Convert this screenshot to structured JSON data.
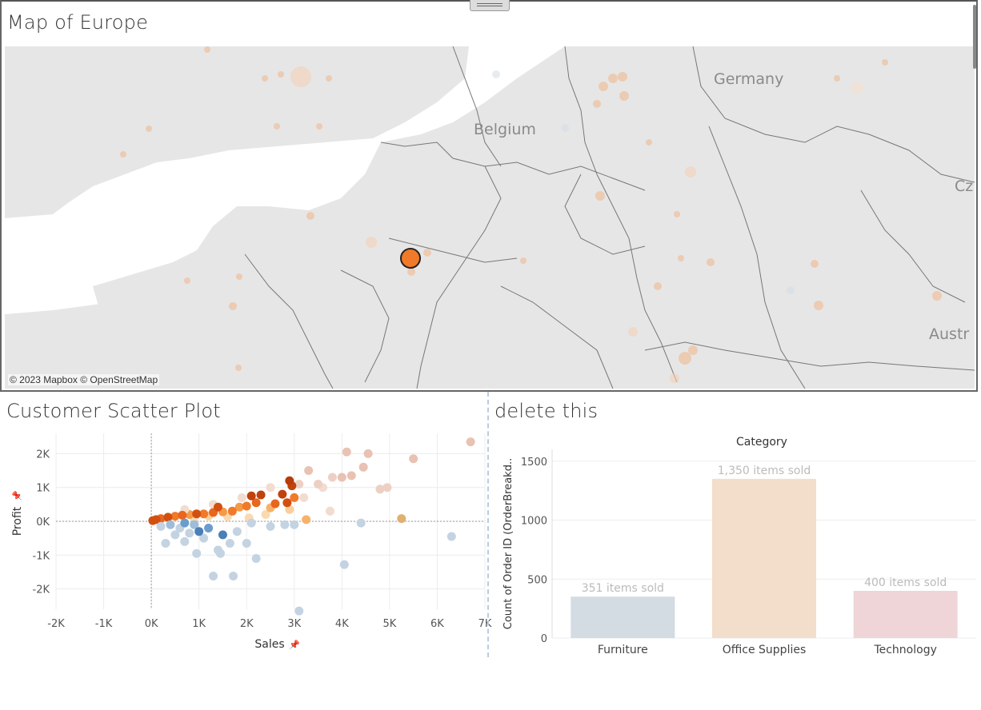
{
  "map": {
    "title": "Map of Europe",
    "attribution": "© 2023 Mapbox © OpenStreetMap",
    "labels": [
      "Germany",
      "Belgium",
      "Cz",
      "Austr"
    ],
    "highlight_color": "#f07a2a"
  },
  "scatter": {
    "title": "Customer Scatter Plot",
    "xlabel": "Sales",
    "ylabel": "Profit",
    "x_ticks": [
      "-2K",
      "-1K",
      "0K",
      "1K",
      "2K",
      "3K",
      "4K",
      "5K",
      "6K",
      "7K"
    ],
    "y_ticks": [
      "2K",
      "1K",
      "0K",
      "-1K",
      "-2K"
    ]
  },
  "bar": {
    "title": "delete this",
    "header": "Category",
    "ylabel": "Count of Order ID (OrderBreakd..",
    "y_ticks": [
      "1500",
      "1000",
      "500",
      "0"
    ]
  },
  "chart_data": [
    {
      "type": "scatter",
      "title": "Customer Scatter Plot",
      "xlabel": "Sales",
      "ylabel": "Profit",
      "xlim": [
        -2000,
        7000
      ],
      "ylim": [
        -2600,
        2600
      ],
      "grid": true,
      "points": [
        {
          "x": 30,
          "y": 20,
          "c": "#d2500f"
        },
        {
          "x": 100,
          "y": 50,
          "c": "#d2500f"
        },
        {
          "x": 200,
          "y": 80,
          "c": "#e8661d"
        },
        {
          "x": 350,
          "y": 120,
          "c": "#d2500f"
        },
        {
          "x": 500,
          "y": 150,
          "c": "#f07a2a"
        },
        {
          "x": 650,
          "y": 180,
          "c": "#e8661d"
        },
        {
          "x": 800,
          "y": 200,
          "c": "#f59a45"
        },
        {
          "x": 950,
          "y": 220,
          "c": "#d2500f"
        },
        {
          "x": 1100,
          "y": 220,
          "c": "#f07a2a"
        },
        {
          "x": 1300,
          "y": 260,
          "c": "#e8661d"
        },
        {
          "x": 1500,
          "y": 280,
          "c": "#f59a45"
        },
        {
          "x": 1700,
          "y": 300,
          "c": "#f07a2a"
        },
        {
          "x": 1400,
          "y": 420,
          "c": "#d2500f"
        },
        {
          "x": 1850,
          "y": 420,
          "c": "#f59a45"
        },
        {
          "x": 2000,
          "y": 450,
          "c": "#f07a2a"
        },
        {
          "x": 2100,
          "y": 750,
          "c": "#c0420c"
        },
        {
          "x": 2300,
          "y": 780,
          "c": "#c0420c"
        },
        {
          "x": 2200,
          "y": 550,
          "c": "#e8661d"
        },
        {
          "x": 2500,
          "y": 400,
          "c": "#f6b26b"
        },
        {
          "x": 2600,
          "y": 520,
          "c": "#e8661d"
        },
        {
          "x": 2750,
          "y": 800,
          "c": "#c0420c"
        },
        {
          "x": 2900,
          "y": 1200,
          "c": "#b83c0a"
        },
        {
          "x": 2950,
          "y": 1050,
          "c": "#c0420c"
        },
        {
          "x": 3000,
          "y": 700,
          "c": "#f07a2a"
        },
        {
          "x": 2850,
          "y": 550,
          "c": "#d2500f"
        },
        {
          "x": 3250,
          "y": 50,
          "c": "#f6b26b"
        },
        {
          "x": 5250,
          "y": 80,
          "c": "#e0b070"
        },
        {
          "x": 2050,
          "y": 100,
          "c": "#fbd9b0"
        },
        {
          "x": 2400,
          "y": 200,
          "c": "#fbd9b0"
        },
        {
          "x": 2900,
          "y": 350,
          "c": "#f9cf9c"
        },
        {
          "x": 1600,
          "y": 140,
          "c": "#fbd9b0"
        },
        {
          "x": 1200,
          "y": 160,
          "c": "#f9cf9c"
        },
        {
          "x": 900,
          "y": 120,
          "c": "#fbd9b0"
        },
        {
          "x": 3300,
          "y": 1500,
          "c": "#e8c2b3"
        },
        {
          "x": 3100,
          "y": 1100,
          "c": "#edd0c4"
        },
        {
          "x": 3500,
          "y": 1100,
          "c": "#edd0c4"
        },
        {
          "x": 3800,
          "y": 1300,
          "c": "#edd0c4"
        },
        {
          "x": 4000,
          "y": 1300,
          "c": "#e8c2b3"
        },
        {
          "x": 4200,
          "y": 1350,
          "c": "#e8c2b3"
        },
        {
          "x": 4100,
          "y": 2050,
          "c": "#e8c2b3"
        },
        {
          "x": 4550,
          "y": 2000,
          "c": "#e8c2b3"
        },
        {
          "x": 4450,
          "y": 1600,
          "c": "#e8c2b3"
        },
        {
          "x": 4800,
          "y": 950,
          "c": "#edd0c4"
        },
        {
          "x": 4950,
          "y": 1000,
          "c": "#edd0c4"
        },
        {
          "x": 5500,
          "y": 1850,
          "c": "#e8c2b3"
        },
        {
          "x": 6700,
          "y": 2350,
          "c": "#e8c2b3"
        },
        {
          "x": 3750,
          "y": 300,
          "c": "#f2dccf"
        },
        {
          "x": 3200,
          "y": 700,
          "c": "#f2dccf"
        },
        {
          "x": 3600,
          "y": 1000,
          "c": "#f2dccf"
        },
        {
          "x": 2500,
          "y": 1000,
          "c": "#f2dccf"
        },
        {
          "x": 1900,
          "y": 700,
          "c": "#f2dccf"
        },
        {
          "x": 1300,
          "y": 500,
          "c": "#f2dccf"
        },
        {
          "x": 700,
          "y": 350,
          "c": "#f2dccf"
        },
        {
          "x": 1000,
          "y": -300,
          "c": "#4a7fb8"
        },
        {
          "x": 1500,
          "y": -400,
          "c": "#4a7fb8"
        },
        {
          "x": 1200,
          "y": -200,
          "c": "#6b9ccc"
        },
        {
          "x": 700,
          "y": -50,
          "c": "#6b9ccc"
        },
        {
          "x": 900,
          "y": -100,
          "c": "#9dbddb"
        },
        {
          "x": 400,
          "y": -100,
          "c": "#9dbddb"
        },
        {
          "x": 600,
          "y": -200,
          "c": "#c3d3e2"
        },
        {
          "x": 800,
          "y": -350,
          "c": "#c3d3e2"
        },
        {
          "x": 300,
          "y": -650,
          "c": "#c3d3e2"
        },
        {
          "x": 700,
          "y": -600,
          "c": "#c3d3e2"
        },
        {
          "x": 950,
          "y": -950,
          "c": "#c3d3e2"
        },
        {
          "x": 1400,
          "y": -850,
          "c": "#c3d3e2"
        },
        {
          "x": 1450,
          "y": -950,
          "c": "#c3d3e2"
        },
        {
          "x": 1650,
          "y": -650,
          "c": "#c3d3e2"
        },
        {
          "x": 2000,
          "y": -650,
          "c": "#c3d3e2"
        },
        {
          "x": 2200,
          "y": -1100,
          "c": "#c3d3e2"
        },
        {
          "x": 1300,
          "y": -1620,
          "c": "#c3d3e2"
        },
        {
          "x": 1720,
          "y": -1620,
          "c": "#c3d3e2"
        },
        {
          "x": 4050,
          "y": -1280,
          "c": "#c3d3e2"
        },
        {
          "x": 3100,
          "y": -2650,
          "c": "#c3d3e2"
        },
        {
          "x": 2500,
          "y": -150,
          "c": "#c3d3e2"
        },
        {
          "x": 2800,
          "y": -100,
          "c": "#c3d3e2"
        },
        {
          "x": 3000,
          "y": -100,
          "c": "#c3d3e2"
        },
        {
          "x": 4400,
          "y": -50,
          "c": "#c3d3e2"
        },
        {
          "x": 6300,
          "y": -450,
          "c": "#c3d3e2"
        },
        {
          "x": 1800,
          "y": -300,
          "c": "#c3d3e2"
        },
        {
          "x": 2100,
          "y": -50,
          "c": "#c3d3e2"
        },
        {
          "x": 200,
          "y": -150,
          "c": "#c3d3e2"
        },
        {
          "x": 500,
          "y": -400,
          "c": "#c3d3e2"
        },
        {
          "x": 1100,
          "y": -500,
          "c": "#c3d3e2"
        }
      ]
    },
    {
      "type": "bar",
      "title": "delete this",
      "xlabel": "Category",
      "ylabel": "Count of Order ID (OrderBreakd..",
      "categories": [
        "Furniture",
        "Office Supplies",
        "Technology"
      ],
      "values": [
        351,
        1350,
        400
      ],
      "labels": [
        "351 items sold",
        "1,350 items sold",
        "400 items sold"
      ],
      "colors": [
        "#d3dbe3",
        "#f3decb",
        "#efd5d7"
      ],
      "ylim": [
        0,
        1600
      ]
    }
  ]
}
